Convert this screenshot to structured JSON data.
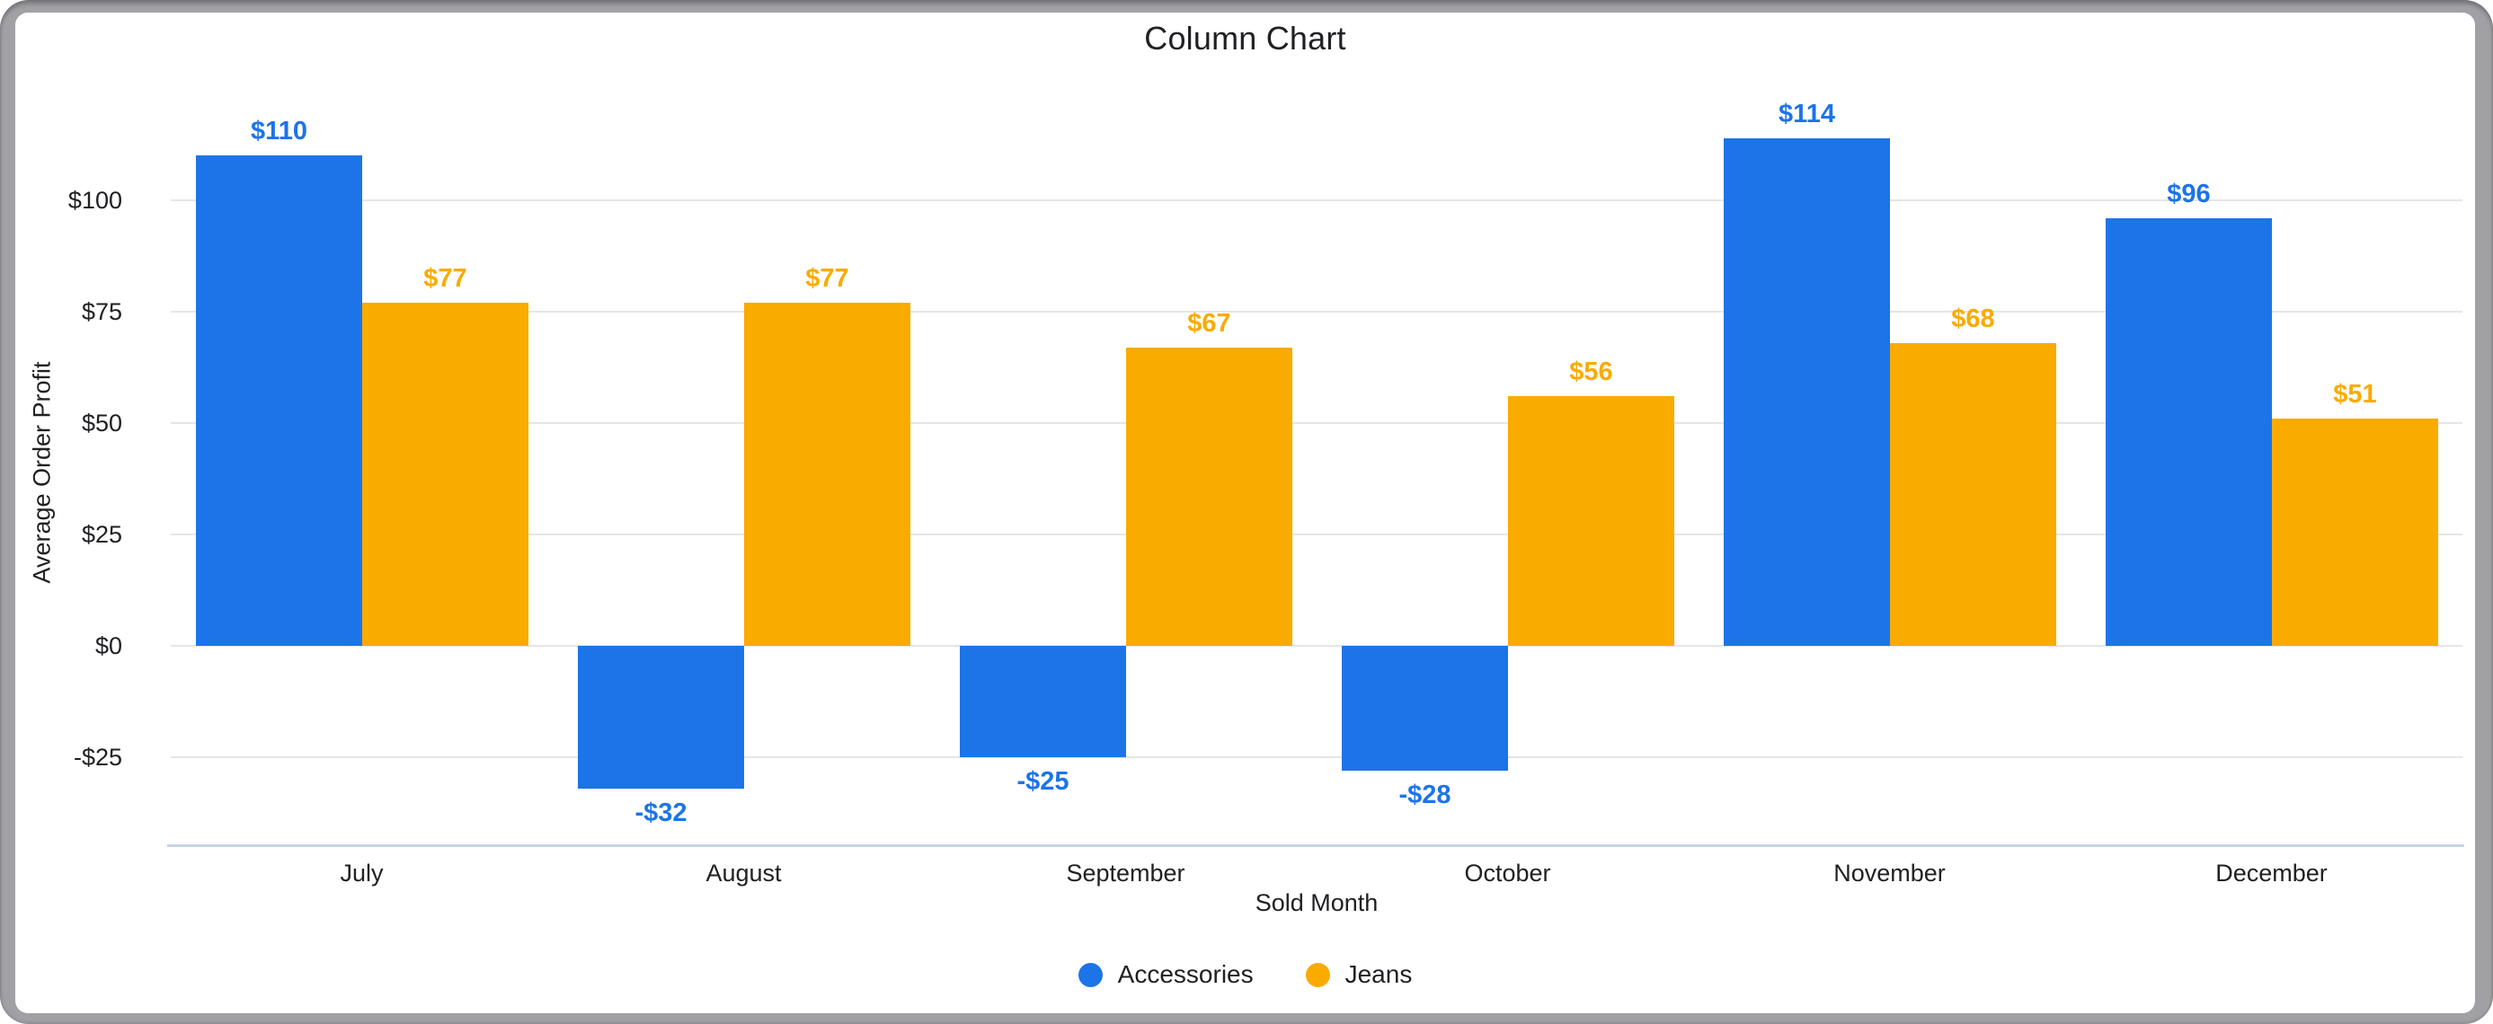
{
  "chart": {
    "title": "Column Chart",
    "x_axis_title": "Sold Month",
    "y_axis_title": "Average Order Profit",
    "colors": {
      "accessories_blue": "#1d74e8",
      "jeans_orange": "#f9ab00",
      "gridline_gray": "#e5e5e5",
      "baseline_blue_gray": "#c9d3e6",
      "text_dark": "#202124",
      "frame_gray": "#a1a1a5"
    },
    "legend": {
      "position": "bottom",
      "items": [
        {
          "label": "Accessories",
          "color": "#1d74e8",
          "swatch": "circle"
        },
        {
          "label": "Jeans",
          "color": "#f9ab00",
          "swatch": "circle"
        }
      ]
    }
  },
  "chart_data": {
    "type": "bar",
    "title": "Column Chart",
    "xlabel": "Sold Month",
    "ylabel": "Average Order Profit",
    "categories": [
      "July",
      "August",
      "September",
      "October",
      "November",
      "December"
    ],
    "series": [
      {
        "name": "Accessories",
        "color": "#1d74e8",
        "values": [
          110,
          -32,
          -25,
          -28,
          114,
          96
        ],
        "labels": [
          "$110",
          "-$32",
          "-$25",
          "-$28",
          "$114",
          "$96"
        ]
      },
      {
        "name": "Jeans",
        "color": "#f9ab00",
        "values": [
          77,
          77,
          67,
          56,
          68,
          51
        ],
        "labels": [
          "$77",
          "$77",
          "$67",
          "$56",
          "$68",
          "$51"
        ]
      }
    ],
    "y_ticks": [
      {
        "value": 100,
        "label": "$100"
      },
      {
        "value": 75,
        "label": "$75"
      },
      {
        "value": 50,
        "label": "$50"
      },
      {
        "value": 25,
        "label": "$25"
      },
      {
        "value": 0,
        "label": "$0"
      },
      {
        "value": -25,
        "label": "-$25"
      }
    ],
    "ylim": [
      -45,
      127
    ],
    "grid": true,
    "legend_position": "bottom"
  }
}
